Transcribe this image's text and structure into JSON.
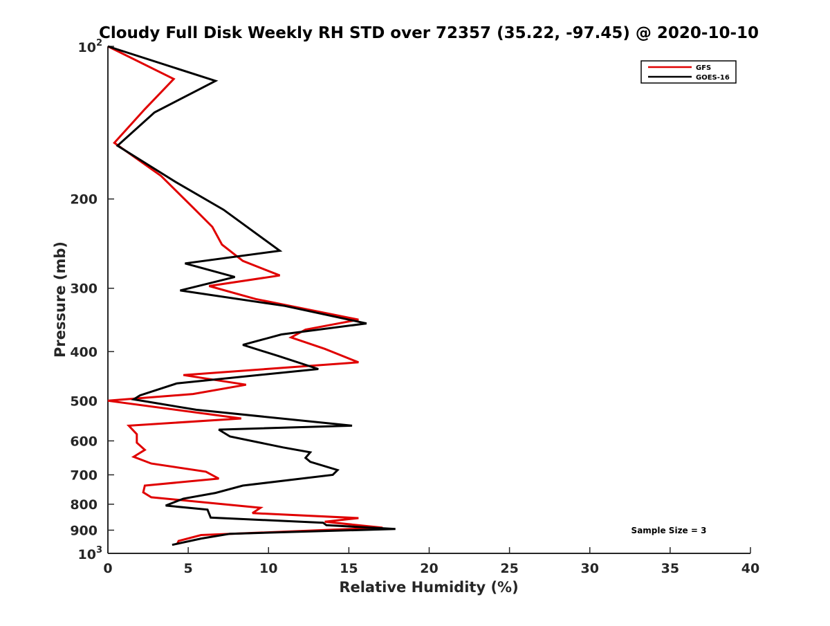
{
  "chart_data": {
    "type": "line",
    "title": "Cloudy Full Disk Weekly RH STD over 72357 (35.22, -97.45) @ 2020-10-10",
    "xlabel": "Relative Humidity (%)",
    "ylabel": "Pressure (mb)",
    "xlim": [
      0,
      40
    ],
    "ylim": [
      100,
      1000
    ],
    "y_scale": "log",
    "y_reversed": true,
    "grid": false,
    "legend_position": "top-right",
    "x_ticks": [
      {
        "value": 0,
        "label": "0"
      },
      {
        "value": 5,
        "label": "5"
      },
      {
        "value": 10,
        "label": "10"
      },
      {
        "value": 15,
        "label": "15"
      },
      {
        "value": 20,
        "label": "20"
      },
      {
        "value": 25,
        "label": "25"
      },
      {
        "value": 30,
        "label": "30"
      },
      {
        "value": 35,
        "label": "35"
      },
      {
        "value": 40,
        "label": "40"
      }
    ],
    "y_ticks": [
      {
        "value": 100,
        "base": "10",
        "exp": "2"
      },
      {
        "value": 200,
        "label": "200"
      },
      {
        "value": 300,
        "label": "300"
      },
      {
        "value": 400,
        "label": "400"
      },
      {
        "value": 500,
        "label": "500"
      },
      {
        "value": 600,
        "label": "600"
      },
      {
        "value": 700,
        "label": "700"
      },
      {
        "value": 800,
        "label": "800"
      },
      {
        "value": 900,
        "label": "900"
      },
      {
        "value": 1000,
        "base": "10",
        "exp": "3"
      }
    ],
    "annotation": "Sample Size = 3",
    "series": [
      {
        "name": "GFS",
        "color": "#e00000",
        "x": [
          0.0,
          4.1,
          2.3,
          0.4,
          3.3,
          5.3,
          6.5,
          7.1,
          8.4,
          10.7,
          6.3,
          9.2,
          15.6,
          12.3,
          11.4,
          13.5,
          15.6,
          4.7,
          8.6,
          5.3,
          0.0,
          8.3,
          1.3,
          1.8,
          1.8,
          2.3,
          1.6,
          2.7,
          6.1,
          6.9,
          2.3,
          2.2,
          2.7,
          9.5,
          9.0,
          15.6,
          13.5,
          17.1,
          5.8,
          4.4,
          4.3
        ],
        "y": [
          100,
          116,
          133,
          155,
          180,
          208,
          227,
          246,
          265,
          283,
          297,
          315,
          346,
          362,
          375,
          395,
          420,
          445,
          465,
          485,
          500,
          542,
          560,
          582,
          605,
          625,
          645,
          665,
          690,
          712,
          735,
          758,
          775,
          813,
          833,
          852,
          866,
          890,
          920,
          945,
          960
        ]
      },
      {
        "name": "GOES-16",
        "color": "#000000",
        "x": [
          0.0,
          6.7,
          2.9,
          0.6,
          4.2,
          7.2,
          10.7,
          4.8,
          7.9,
          4.5,
          11.0,
          16.1,
          10.8,
          8.4,
          10.6,
          13.1,
          4.3,
          2.0,
          1.6,
          5.5,
          15.2,
          6.9,
          7.6,
          10.9,
          12.6,
          12.3,
          12.6,
          14.3,
          14.0,
          8.4,
          6.7,
          4.7,
          3.6,
          6.2,
          6.4,
          13.4,
          13.6,
          17.9,
          7.6,
          5.8,
          4.0
        ],
        "y": [
          100,
          117,
          135,
          157,
          185,
          210,
          253,
          268,
          285,
          303,
          325,
          352,
          370,
          388,
          408,
          433,
          462,
          488,
          497,
          521,
          560,
          570,
          588,
          618,
          632,
          648,
          660,
          685,
          700,
          735,
          760,
          780,
          805,
          820,
          850,
          870,
          880,
          895,
          915,
          935,
          962
        ]
      }
    ]
  }
}
